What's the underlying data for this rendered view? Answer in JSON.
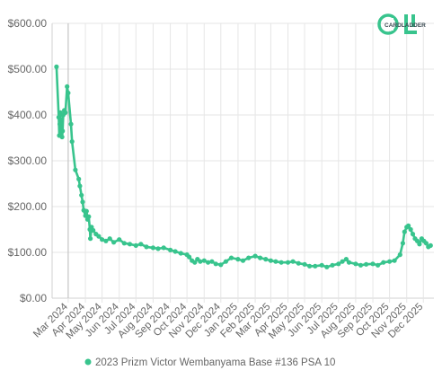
{
  "colors": {
    "series": "#38c48d",
    "brand_dark": "#3a4a52",
    "brand_accent": "#38c48d"
  },
  "logo": {
    "text": "CARDLADDER"
  },
  "chart_data": {
    "type": "line",
    "title": "",
    "xlabel": "",
    "ylabel": "",
    "ylim": [
      0,
      600
    ],
    "yticks": [
      "$0.00",
      "$100.00",
      "$200.00",
      "$300.00",
      "$400.00",
      "$500.00",
      "$600.00"
    ],
    "xlim": [
      "2024-02-01",
      "2025-12-20"
    ],
    "xticks": [
      {
        "date": "2024-03-01",
        "label": "Mar 2024"
      },
      {
        "date": "2024-04-01",
        "label": "Apr 2024"
      },
      {
        "date": "2024-05-01",
        "label": "May 2024"
      },
      {
        "date": "2024-06-01",
        "label": "Jun 2024"
      },
      {
        "date": "2024-07-01",
        "label": "Jul 2024"
      },
      {
        "date": "2024-08-01",
        "label": "Aug 2024"
      },
      {
        "date": "2024-09-01",
        "label": "Sep 2024"
      },
      {
        "date": "2024-10-01",
        "label": "Oct 2024"
      },
      {
        "date": "2024-11-01",
        "label": "Nov 2024"
      },
      {
        "date": "2024-12-01",
        "label": "Dec 2024"
      },
      {
        "date": "2025-01-01",
        "label": "Jan 2025"
      },
      {
        "date": "2025-02-01",
        "label": "Feb 2025"
      },
      {
        "date": "2025-03-01",
        "label": "Mar 2025"
      },
      {
        "date": "2025-04-01",
        "label": "Apr 2025"
      },
      {
        "date": "2025-05-01",
        "label": "May 2025"
      },
      {
        "date": "2025-06-01",
        "label": "Jun 2025"
      },
      {
        "date": "2025-07-01",
        "label": "Jul 2025"
      },
      {
        "date": "2025-08-01",
        "label": "Aug 2025"
      },
      {
        "date": "2025-09-01",
        "label": "Sep 2025"
      },
      {
        "date": "2025-10-01",
        "label": "Oct 2025"
      },
      {
        "date": "2025-11-01",
        "label": "Nov 2025"
      },
      {
        "date": "2025-12-01",
        "label": "Dec 2025"
      }
    ],
    "grid": true,
    "legend": "bottom",
    "series": [
      {
        "name": "2023 Prizm Victor Wembanyama Base #136 PSA 10",
        "points": [
          [
            "2024-02-09",
            505
          ],
          [
            "2024-02-13",
            395
          ],
          [
            "2024-02-14",
            355
          ],
          [
            "2024-02-15",
            380
          ],
          [
            "2024-02-16",
            405
          ],
          [
            "2024-02-17",
            360
          ],
          [
            "2024-02-18",
            390
          ],
          [
            "2024-02-19",
            352
          ],
          [
            "2024-02-20",
            365
          ],
          [
            "2024-02-21",
            400
          ],
          [
            "2024-02-23",
            410
          ],
          [
            "2024-02-25",
            405
          ],
          [
            "2024-02-28",
            462
          ],
          [
            "2024-03-01",
            448
          ],
          [
            "2024-03-06",
            380
          ],
          [
            "2024-03-08",
            342
          ],
          [
            "2024-03-14",
            280
          ],
          [
            "2024-03-20",
            260
          ],
          [
            "2024-03-22",
            245
          ],
          [
            "2024-03-25",
            225
          ],
          [
            "2024-03-27",
            210
          ],
          [
            "2024-03-29",
            192
          ],
          [
            "2024-04-01",
            180
          ],
          [
            "2024-04-03",
            190
          ],
          [
            "2024-04-05",
            172
          ],
          [
            "2024-04-07",
            178
          ],
          [
            "2024-04-09",
            150
          ],
          [
            "2024-04-10",
            130
          ],
          [
            "2024-04-12",
            155
          ],
          [
            "2024-04-15",
            148
          ],
          [
            "2024-04-20",
            140
          ],
          [
            "2024-04-25",
            135
          ],
          [
            "2024-05-01",
            128
          ],
          [
            "2024-05-08",
            125
          ],
          [
            "2024-05-15",
            130
          ],
          [
            "2024-05-22",
            122
          ],
          [
            "2024-06-01",
            128
          ],
          [
            "2024-06-10",
            120
          ],
          [
            "2024-06-20",
            118
          ],
          [
            "2024-07-01",
            115
          ],
          [
            "2024-07-10",
            118
          ],
          [
            "2024-07-20",
            112
          ],
          [
            "2024-08-01",
            110
          ],
          [
            "2024-08-10",
            108
          ],
          [
            "2024-08-20",
            110
          ],
          [
            "2024-09-01",
            105
          ],
          [
            "2024-09-10",
            102
          ],
          [
            "2024-09-20",
            98
          ],
          [
            "2024-10-01",
            95
          ],
          [
            "2024-10-05",
            90
          ],
          [
            "2024-10-10",
            82
          ],
          [
            "2024-10-15",
            78
          ],
          [
            "2024-10-20",
            85
          ],
          [
            "2024-10-25",
            80
          ],
          [
            "2024-11-01",
            82
          ],
          [
            "2024-11-08",
            78
          ],
          [
            "2024-11-15",
            80
          ],
          [
            "2024-11-22",
            75
          ],
          [
            "2024-12-01",
            73
          ],
          [
            "2024-12-10",
            80
          ],
          [
            "2024-12-20",
            88
          ],
          [
            "2025-01-01",
            85
          ],
          [
            "2025-01-10",
            82
          ],
          [
            "2025-01-20",
            88
          ],
          [
            "2025-02-01",
            92
          ],
          [
            "2025-02-10",
            88
          ],
          [
            "2025-02-20",
            85
          ],
          [
            "2025-03-01",
            82
          ],
          [
            "2025-03-10",
            80
          ],
          [
            "2025-03-20",
            78
          ],
          [
            "2025-04-01",
            78
          ],
          [
            "2025-04-10",
            80
          ],
          [
            "2025-04-20",
            76
          ],
          [
            "2025-05-01",
            74
          ],
          [
            "2025-05-10",
            70
          ],
          [
            "2025-05-20",
            70
          ],
          [
            "2025-06-01",
            72
          ],
          [
            "2025-06-10",
            68
          ],
          [
            "2025-06-20",
            72
          ],
          [
            "2025-07-01",
            75
          ],
          [
            "2025-07-08",
            80
          ],
          [
            "2025-07-15",
            85
          ],
          [
            "2025-07-20",
            78
          ],
          [
            "2025-08-01",
            75
          ],
          [
            "2025-08-10",
            72
          ],
          [
            "2025-08-20",
            74
          ],
          [
            "2025-09-01",
            75
          ],
          [
            "2025-09-10",
            72
          ],
          [
            "2025-09-20",
            78
          ],
          [
            "2025-10-01",
            80
          ],
          [
            "2025-10-10",
            82
          ],
          [
            "2025-10-20",
            95
          ],
          [
            "2025-10-25",
            120
          ],
          [
            "2025-10-28",
            145
          ],
          [
            "2025-11-01",
            155
          ],
          [
            "2025-11-04",
            158
          ],
          [
            "2025-11-08",
            150
          ],
          [
            "2025-11-12",
            140
          ],
          [
            "2025-11-16",
            130
          ],
          [
            "2025-11-20",
            125
          ],
          [
            "2025-11-24",
            118
          ],
          [
            "2025-11-28",
            130
          ],
          [
            "2025-12-02",
            125
          ],
          [
            "2025-12-06",
            120
          ],
          [
            "2025-12-10",
            112
          ],
          [
            "2025-12-14",
            115
          ]
        ]
      }
    ]
  }
}
